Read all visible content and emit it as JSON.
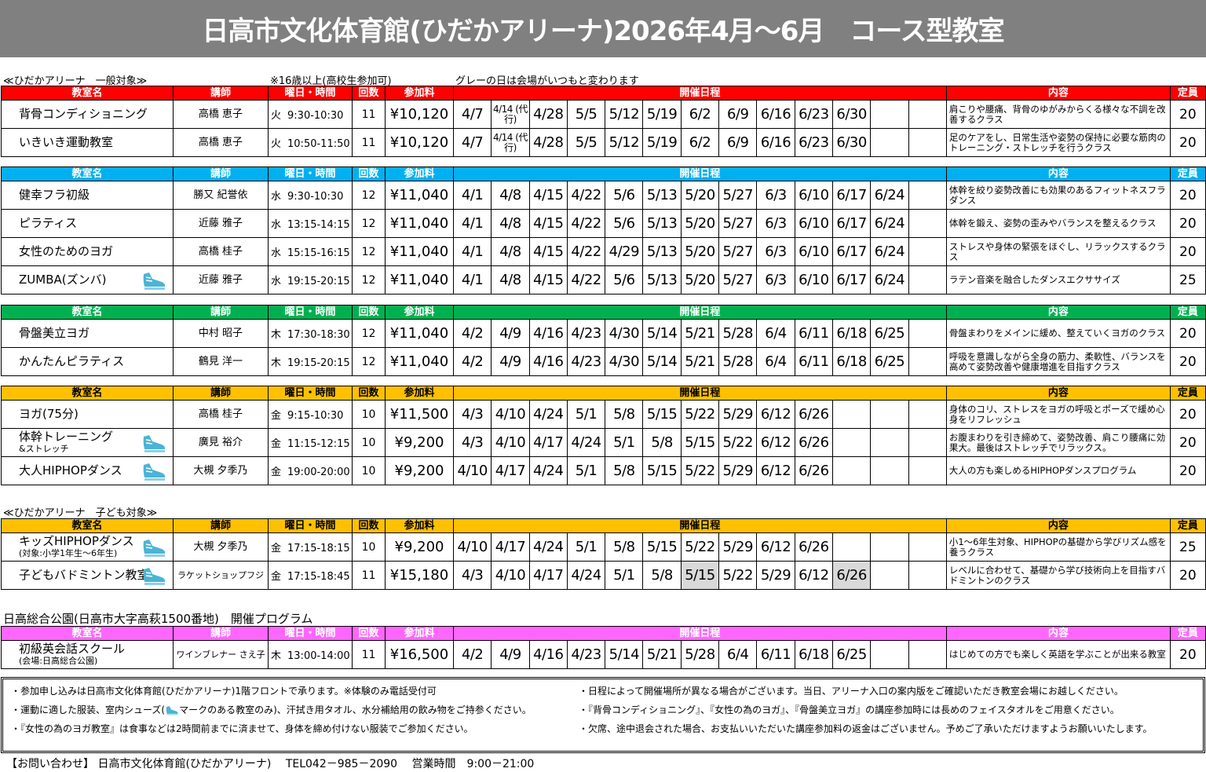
{
  "title": "日高市文化体育館(ひだかアリーナ)2026年4月～6月　コース型教室",
  "section_general": "≪ひだかアリーナ　一般対象≫",
  "age_note": "※16歳以上(高校生参加可)",
  "grey_note": "グレーの日は会場がいつもと変わります",
  "section_kids": "≪ひだかアリーナ　子ども対象≫",
  "section_park": "日高総合公園(日高市大字高萩1500番地)　開催プログラム",
  "headers": {
    "name": "教室名",
    "teacher": "講師",
    "day_time": "曜日・時間",
    "count": "回数",
    "fee": "参加料",
    "schedule": "開催日程",
    "content": "内容",
    "capacity": "定員"
  },
  "icons": {
    "shoe": "running-shoe-icon",
    "shoe_color": "#4bb4d6"
  },
  "tables": [
    {
      "header_color": "#ff0000",
      "header_text_color": "#ffffff",
      "rows": [
        {
          "name": "背骨コンディショニング",
          "teacher": "高橋 恵子",
          "day": "火",
          "time": "9:30-10:30",
          "count": "11",
          "fee": "¥10,120",
          "dates": [
            "4/7",
            "4/14 (代行)",
            "4/28",
            "5/5",
            "5/12",
            "5/19",
            "6/2",
            "6/9",
            "6/16",
            "6/23",
            "6/30",
            "",
            ""
          ],
          "grey": [],
          "content": "肩こりや腰痛、背骨のゆがみからくる様々な不調を改善するクラス",
          "capacity": "20"
        },
        {
          "name": "いきいき運動教室",
          "teacher": "高橋 恵子",
          "day": "火",
          "time": "10:50-11:50",
          "count": "11",
          "fee": "¥10,120",
          "dates": [
            "4/7",
            "4/14 (代行)",
            "4/28",
            "5/5",
            "5/12",
            "5/19",
            "6/2",
            "6/9",
            "6/16",
            "6/23",
            "6/30",
            "",
            ""
          ],
          "grey": [],
          "content": "足のケアをし、日常生活や姿勢の保持に必要な筋肉のトレーニング・ストレッチを行うクラス",
          "capacity": "20"
        }
      ]
    },
    {
      "header_color": "#00b0f0",
      "header_text_color": "#ffffff",
      "rows": [
        {
          "name": "健幸フラ初級",
          "teacher": "勝又 紀誉依",
          "day": "水",
          "time": "9:30-10:30",
          "count": "12",
          "fee": "¥11,040",
          "dates": [
            "4/1",
            "4/8",
            "4/15",
            "4/22",
            "5/6",
            "5/13",
            "5/20",
            "5/27",
            "6/3",
            "6/10",
            "6/17",
            "6/24",
            ""
          ],
          "grey": [],
          "content": "体幹を絞り姿勢改善にも効果のあるフィットネスフラダンス",
          "capacity": "20"
        },
        {
          "name": "ピラティス",
          "teacher": "近藤 雅子",
          "day": "水",
          "time": "13:15-14:15",
          "count": "12",
          "fee": "¥11,040",
          "dates": [
            "4/1",
            "4/8",
            "4/15",
            "4/22",
            "5/6",
            "5/13",
            "5/20",
            "5/27",
            "6/3",
            "6/10",
            "6/17",
            "6/24",
            ""
          ],
          "grey": [],
          "content": "体幹を鍛え、姿勢の歪みやバランスを整えるクラス",
          "capacity": "20"
        },
        {
          "name": "女性のためのヨガ",
          "teacher": "高橋 桂子",
          "day": "水",
          "time": "15:15-16:15",
          "count": "12",
          "fee": "¥11,040",
          "dates": [
            "4/1",
            "4/8",
            "4/15",
            "4/22",
            "4/29",
            "5/13",
            "5/20",
            "5/27",
            "6/3",
            "6/10",
            "6/17",
            "6/24",
            ""
          ],
          "grey": [],
          "content": "ストレスや身体の緊張をほぐし、リラックスするクラス",
          "capacity": "20"
        },
        {
          "name": "ZUMBA(ズンバ)",
          "shoe": true,
          "teacher": "近藤 雅子",
          "day": "水",
          "time": "19:15-20:15",
          "count": "12",
          "fee": "¥11,040",
          "dates": [
            "4/1",
            "4/8",
            "4/15",
            "4/22",
            "5/6",
            "5/13",
            "5/20",
            "5/27",
            "6/3",
            "6/10",
            "6/17",
            "6/24",
            ""
          ],
          "grey": [],
          "content": "ラテン音楽を融合したダンスエクササイズ",
          "capacity": "25"
        }
      ]
    },
    {
      "header_color": "#00b050",
      "header_text_color": "#ffffff",
      "rows": [
        {
          "name": "骨盤美立ヨガ",
          "teacher": "中村 昭子",
          "day": "木",
          "time": "17:30-18:30",
          "count": "12",
          "fee": "¥11,040",
          "dates": [
            "4/2",
            "4/9",
            "4/16",
            "4/23",
            "4/30",
            "5/14",
            "5/21",
            "5/28",
            "6/4",
            "6/11",
            "6/18",
            "6/25",
            ""
          ],
          "grey": [],
          "content": "骨盤まわりをメインに緩め、整えていくヨガのクラス",
          "capacity": "20"
        },
        {
          "name": "かんたんピラティス",
          "teacher": "鶴見 洋一",
          "day": "木",
          "time": "19:15-20:15",
          "count": "12",
          "fee": "¥11,040",
          "dates": [
            "4/2",
            "4/9",
            "4/16",
            "4/23",
            "4/30",
            "5/14",
            "5/21",
            "5/28",
            "6/4",
            "6/11",
            "6/18",
            "6/25",
            ""
          ],
          "grey": [],
          "content": "呼吸を意識しながら全身の筋力、柔軟性、バランスを高めて姿勢改善や健康増進を目指すクラス",
          "capacity": "20"
        }
      ]
    },
    {
      "header_color": "#ffc000",
      "header_text_color": "#000000",
      "rows": [
        {
          "name": "ヨガ(75分)",
          "teacher": "高橋 桂子",
          "day": "金",
          "time": "9:15-10:30",
          "count": "10",
          "fee": "¥11,500",
          "dates": [
            "4/3",
            "4/10",
            "4/24",
            "5/1",
            "5/8",
            "5/15",
            "5/22",
            "5/29",
            "6/12",
            "6/26",
            "",
            "",
            ""
          ],
          "grey": [],
          "content": "身体のコリ、ストレスをヨガの呼吸とポーズで緩め心身をリフレッシュ",
          "capacity": "20"
        },
        {
          "name": "体幹トレーニング",
          "name_sub": "&ストレッチ",
          "shoe": true,
          "teacher": "廣見 裕介",
          "day": "金",
          "time": "11:15-12:15",
          "count": "10",
          "fee": "¥9,200",
          "dates": [
            "4/3",
            "4/10",
            "4/17",
            "4/24",
            "5/1",
            "5/8",
            "5/15",
            "5/22",
            "6/12",
            "6/26",
            "",
            "",
            ""
          ],
          "grey": [],
          "content": "お腹まわりを引き締めて、姿勢改善、肩こり腰痛に効果大。最後はストレッチでリラックス。",
          "capacity": "20"
        },
        {
          "name": "大人HIPHOPダンス",
          "shoe": true,
          "teacher": "大槻 夕季乃",
          "day": "金",
          "time": "19:00-20:00",
          "count": "10",
          "fee": "¥9,200",
          "dates": [
            "4/10",
            "4/17",
            "4/24",
            "5/1",
            "5/8",
            "5/15",
            "5/22",
            "5/29",
            "6/12",
            "6/26",
            "",
            "",
            ""
          ],
          "grey": [],
          "content": "大人の方も楽しめるHIPHOPダンスプログラム",
          "capacity": "20"
        }
      ]
    },
    {
      "header_color": "#ffc000",
      "header_text_color": "#000000",
      "rows": [
        {
          "name": "キッズHIPHOPダンス",
          "name_sub": "(対象:小学1年生～6年生)",
          "shoe": true,
          "teacher": "大槻 夕季乃",
          "day": "金",
          "time": "17:15-18:15",
          "count": "10",
          "fee": "¥9,200",
          "dates": [
            "4/10",
            "4/17",
            "4/24",
            "5/1",
            "5/8",
            "5/15",
            "5/22",
            "5/29",
            "6/12",
            "6/26",
            "",
            "",
            ""
          ],
          "grey": [],
          "content": "小1～6年生対象、HIPHOPの基礎から学びリズム感を養うクラス",
          "capacity": "25"
        },
        {
          "name": "子どもバドミントン教室",
          "shoe": true,
          "teacher": "ラケットショップフジ",
          "day": "金",
          "time": "17:15-18:45",
          "count": "11",
          "fee": "¥15,180",
          "dates": [
            "4/3",
            "4/10",
            "4/17",
            "4/24",
            "5/1",
            "5/8",
            "5/15",
            "5/22",
            "5/29",
            "6/12",
            "6/26",
            "",
            ""
          ],
          "grey": [
            6,
            10
          ],
          "content": "レベルに合わせて、基礎から学び技術向上を目指すバドミントンのクラス",
          "capacity": "20"
        }
      ]
    },
    {
      "header_color": "#ff66ff",
      "header_text_color": "#ffffff",
      "rows": [
        {
          "name": "初級英会話スクール",
          "name_sub": "(会場:日高総合公園)",
          "teacher": "ワインブレナー さえ子",
          "day": "木",
          "time": "13:00-14:00",
          "count": "11",
          "fee": "¥16,500",
          "dates": [
            "4/2",
            "4/9",
            "4/16",
            "4/23",
            "5/14",
            "5/21",
            "5/28",
            "6/4",
            "6/11",
            "6/18",
            "6/25",
            "",
            ""
          ],
          "grey": [],
          "content": "はじめての方でも楽しく英語を学ぶことが出来る教室",
          "capacity": "20"
        }
      ]
    }
  ],
  "notes": [
    "・参加申し込みは日高市文化体育館(ひだかアリーナ)1階フロントで承ります。※体験のみ電話受付可",
    "・運動に適した服装、室内シューズ(",
    "マークのある教室のみ)、汗拭き用タオル、水分補給用の飲み物をご持参ください。",
    "・『女性の為のヨガ教室』は食事などは2時間前までに済ませて、身体を締め付けない服装でご参加ください。",
    "・日程によって開催場所が異なる場合がございます。当日、アリーナ入口の案内版をご確認いただき教室会場にお越しください。",
    "・『背骨コンディショニング』、『女性の為のヨガ』、『骨盤美立ヨガ』の講座参加時には長めのフェイスタオルをご用意ください。",
    "・欠席、途中退会された場合、お支払いいただいた講座参加料の返金はございません。予めご了承いただけますようお願いいたします。"
  ],
  "contact": "【お問い合わせ】 日高市文化体育館(ひだかアリーナ)　 TEL042－985－2090　 営業時間　9:00－21:00"
}
